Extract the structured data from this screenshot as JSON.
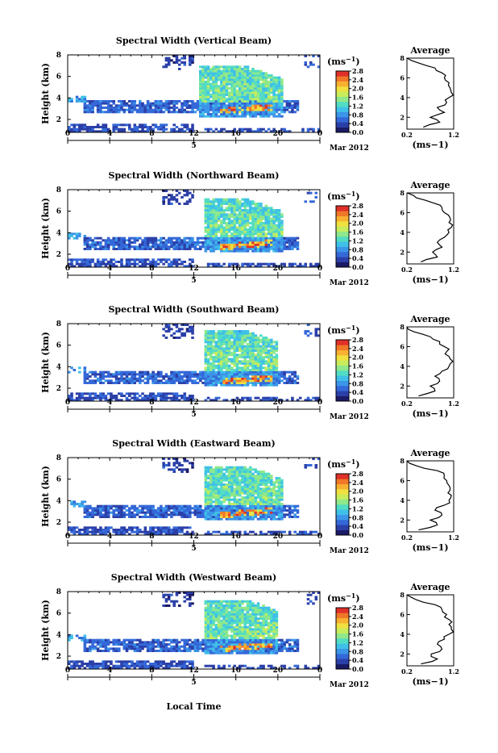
{
  "figure": {
    "xlabel": "Local Time",
    "date_label": "Mar 2012",
    "day_label": "5",
    "colorbar_unit": "(ms",
    "unit_exponent": "−1",
    "colorbar_ticks": [
      "0.0",
      "0.4",
      "0.8",
      "1.2",
      "1.6",
      "2.0",
      "2.4",
      "2.8"
    ],
    "colorbar_colors": [
      "#1a1a66",
      "#2b3fa8",
      "#3468d8",
      "#3b95e8",
      "#3fc0e8",
      "#52dcc4",
      "#8fe88a",
      "#c8ec5c",
      "#f0e040",
      "#f8b030",
      "#f07828",
      "#e03028"
    ],
    "colorscale_range": [
      0.0,
      2.9
    ],
    "heatmap_ylim": [
      0.8,
      8
    ],
    "x_ticks": [
      "0",
      "4",
      "8",
      "12",
      "16",
      "20",
      "0"
    ],
    "y_ticks": [
      "2",
      "4",
      "6",
      "8"
    ],
    "avg_title": "Average",
    "avg_x_ticks": [
      "0.2",
      "1.2"
    ],
    "avg_y_ticks": [
      "2",
      "4",
      "6",
      "8"
    ]
  },
  "chart_data": [
    {
      "type": "heatmap",
      "title": "Spectral Width (Vertical Beam)",
      "ylabel": "Height (km)",
      "xlabel": "",
      "xlim": [
        0,
        24
      ],
      "ylim": [
        0.8,
        8
      ],
      "units": "m/s",
      "features": {
        "cloud_start": 12.5,
        "cloud_end": 20.5,
        "cloud_top": 7.0,
        "layer_height": 3.2,
        "melting_band": 2.9
      }
    },
    {
      "type": "line",
      "title": "Average",
      "xlabel": "(ms−1)",
      "xlim": [
        0.2,
        1.2
      ],
      "ylim": [
        0.8,
        8
      ],
      "y": [
        1.0,
        1.5,
        2.0,
        2.5,
        3.0,
        3.5,
        4.0,
        4.5,
        5.0,
        5.5,
        6.0,
        6.5,
        7.0,
        7.5,
        8.0
      ],
      "x": [
        0.55,
        0.9,
        0.7,
        1.0,
        0.85,
        1.05,
        1.1,
        1.15,
        1.12,
        1.1,
        1.0,
        0.95,
        0.8,
        0.45,
        0.2
      ]
    },
    {
      "type": "heatmap",
      "title": "Spectral Width (Northward Beam)",
      "ylabel": "Height (km)",
      "xlabel": "",
      "xlim": [
        0,
        24
      ],
      "ylim": [
        0.8,
        8
      ],
      "units": "m/s",
      "features": {
        "cloud_start": 13.0,
        "cloud_end": 20.5,
        "cloud_top": 7.2,
        "layer_height": 3.0,
        "melting_band": 2.8
      }
    },
    {
      "type": "line",
      "title": "Average",
      "xlabel": "(ms−1)",
      "xlim": [
        0.2,
        1.2
      ],
      "ylim": [
        0.8,
        8
      ],
      "y": [
        1.0,
        1.5,
        2.0,
        2.5,
        3.0,
        3.5,
        4.0,
        4.5,
        5.0,
        5.5,
        6.0,
        6.5,
        7.0,
        7.5,
        8.0
      ],
      "x": [
        0.5,
        0.85,
        0.75,
        0.95,
        0.85,
        1.0,
        1.1,
        1.15,
        1.1,
        1.12,
        1.0,
        0.95,
        0.75,
        0.4,
        0.2
      ]
    },
    {
      "type": "heatmap",
      "title": "Spectral Width (Southward Beam)",
      "ylabel": "Height (km)",
      "xlabel": "",
      "xlim": [
        0,
        24
      ],
      "ylim": [
        0.8,
        8
      ],
      "units": "m/s",
      "features": {
        "cloud_start": 13.0,
        "cloud_end": 20.0,
        "cloud_top": 7.4,
        "layer_height": 3.0,
        "melting_band": 2.7
      }
    },
    {
      "type": "line",
      "title": "Average",
      "xlabel": "(ms−1)",
      "xlim": [
        0.2,
        1.2
      ],
      "ylim": [
        0.8,
        8
      ],
      "y": [
        1.0,
        1.5,
        2.0,
        2.5,
        3.0,
        3.5,
        4.0,
        4.5,
        5.0,
        5.5,
        6.0,
        6.5,
        7.0,
        7.5,
        8.0
      ],
      "x": [
        0.45,
        0.8,
        0.7,
        0.9,
        0.8,
        0.95,
        1.1,
        1.18,
        1.1,
        1.05,
        1.0,
        0.9,
        0.7,
        0.35,
        0.2
      ]
    },
    {
      "type": "heatmap",
      "title": "Spectral Width (Eastward Beam)",
      "ylabel": "Height (km)",
      "xlabel": "",
      "xlim": [
        0,
        24
      ],
      "ylim": [
        0.8,
        8
      ],
      "units": "m/s",
      "features": {
        "cloud_start": 13.0,
        "cloud_end": 20.5,
        "cloud_top": 7.3,
        "layer_height": 3.0,
        "melting_band": 2.8
      }
    },
    {
      "type": "line",
      "title": "Average",
      "xlabel": "(ms−1)",
      "xlim": [
        0.2,
        1.2
      ],
      "ylim": [
        0.8,
        8
      ],
      "y": [
        1.0,
        1.5,
        2.0,
        2.5,
        3.0,
        3.5,
        4.0,
        4.5,
        5.0,
        5.5,
        6.0,
        6.5,
        7.0,
        7.5,
        8.0
      ],
      "x": [
        0.45,
        0.85,
        0.7,
        0.95,
        0.8,
        1.0,
        1.1,
        1.15,
        1.12,
        1.1,
        1.05,
        1.0,
        0.85,
        0.4,
        0.2
      ]
    },
    {
      "type": "heatmap",
      "title": "Spectral Width (Westward Beam)",
      "ylabel": "Height (km)",
      "xlabel": "Local Time",
      "xlim": [
        0,
        24
      ],
      "ylim": [
        0.8,
        8
      ],
      "units": "m/s",
      "features": {
        "cloud_start": 13.0,
        "cloud_end": 20.0,
        "cloud_top": 7.3,
        "layer_height": 3.0,
        "melting_band": 2.8
      }
    },
    {
      "type": "line",
      "title": "Average",
      "xlabel": "(ms−1)",
      "xlim": [
        0.2,
        1.2
      ],
      "ylim": [
        0.8,
        8
      ],
      "y": [
        1.0,
        1.5,
        2.0,
        2.5,
        3.0,
        3.5,
        4.0,
        4.5,
        5.0,
        5.5,
        6.0,
        6.5,
        7.0,
        7.5,
        8.0
      ],
      "x": [
        0.5,
        0.85,
        0.72,
        0.95,
        0.85,
        1.0,
        1.1,
        1.15,
        1.1,
        1.1,
        1.05,
        0.95,
        0.8,
        0.4,
        0.2
      ]
    }
  ]
}
